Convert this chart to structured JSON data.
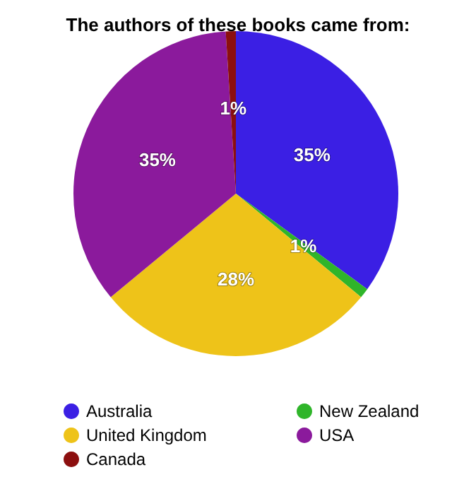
{
  "chart_data": {
    "type": "pie",
    "title": "The authors of these books came from:",
    "categories": [
      "Australia",
      "New Zealand",
      "United Kingdom",
      "USA",
      "Canada"
    ],
    "values": [
      35,
      1,
      28,
      35,
      1
    ],
    "colors": [
      "#3b1fe4",
      "#2fb52a",
      "#eec319",
      "#8b1a9c",
      "#8c0f0f"
    ],
    "value_labels": [
      "35%",
      "1%",
      "28%",
      "35%",
      "1%"
    ],
    "legend": "bottom"
  }
}
